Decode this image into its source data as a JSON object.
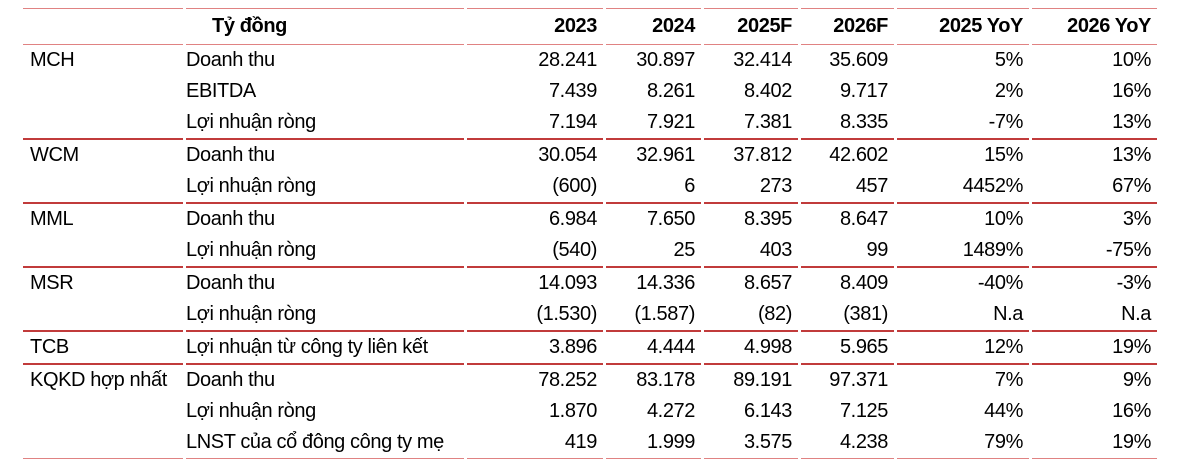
{
  "colors": {
    "accent_line": "#c13b3b",
    "light_line": "#e08282",
    "text": "#000000",
    "background": "#ffffff"
  },
  "table": {
    "header": {
      "metric_label": "Tỷ đồng",
      "years": [
        "2023",
        "2024",
        "2025F",
        "2026F",
        "2025 YoY",
        "2026 YoY"
      ]
    },
    "groups": [
      {
        "name": "MCH",
        "rows": [
          {
            "metric": "Doanh thu",
            "values": [
              "28.241",
              "30.897",
              "32.414",
              "35.609",
              "5%",
              "10%"
            ]
          },
          {
            "metric": "EBITDA",
            "values": [
              "7.439",
              "8.261",
              "8.402",
              "9.717",
              "2%",
              "16%"
            ]
          },
          {
            "metric": "Lợi nhuận ròng",
            "values": [
              "7.194",
              "7.921",
              "7.381",
              "8.335",
              "-7%",
              "13%"
            ]
          }
        ]
      },
      {
        "name": "WCM",
        "rows": [
          {
            "metric": "Doanh thu",
            "values": [
              "30.054",
              "32.961",
              "37.812",
              "42.602",
              "15%",
              "13%"
            ]
          },
          {
            "metric": "Lợi nhuận ròng",
            "values": [
              "(600)",
              "6",
              "273",
              "457",
              "4452%",
              "67%"
            ]
          }
        ]
      },
      {
        "name": "MML",
        "rows": [
          {
            "metric": "Doanh thu",
            "values": [
              "6.984",
              "7.650",
              "8.395",
              "8.647",
              "10%",
              "3%"
            ]
          },
          {
            "metric": "Lợi nhuận ròng",
            "values": [
              "(540)",
              "25",
              "403",
              "99",
              "1489%",
              "-75%"
            ]
          }
        ]
      },
      {
        "name": "MSR",
        "rows": [
          {
            "metric": "Doanh thu",
            "values": [
              "14.093",
              "14.336",
              "8.657",
              "8.409",
              "-40%",
              "-3%"
            ]
          },
          {
            "metric": "Lợi nhuận ròng",
            "values": [
              "(1.530)",
              "(1.587)",
              "(82)",
              "(381)",
              "N.a",
              "N.a"
            ]
          }
        ]
      },
      {
        "name": "TCB",
        "rows": [
          {
            "metric": "Lợi nhuận từ công ty liên kết",
            "values": [
              "3.896",
              "4.444",
              "4.998",
              "5.965",
              "12%",
              "19%"
            ]
          }
        ]
      },
      {
        "name": "KQKD hợp nhất",
        "rows": [
          {
            "metric": "Doanh thu",
            "values": [
              "78.252",
              "83.178",
              "89.191",
              "97.371",
              "7%",
              "9%"
            ]
          },
          {
            "metric": "Lợi nhuận ròng",
            "values": [
              "1.870",
              "4.272",
              "6.143",
              "7.125",
              "44%",
              "16%"
            ]
          },
          {
            "metric": "LNST của cổ đông công ty mẹ",
            "values": [
              "419",
              "1.999",
              "3.575",
              "4.238",
              "79%",
              "19%"
            ]
          }
        ]
      }
    ]
  }
}
